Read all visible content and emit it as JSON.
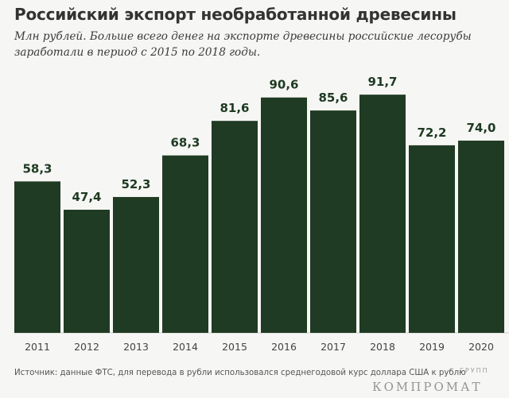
{
  "chart_data": {
    "type": "bar",
    "title": "Российский экспорт необработанной древесины",
    "subtitle": "Млн рублей. Больше всего денег на экспорте древесины российские лесорубы заработали в период с 2015 по 2018 годы.",
    "categories": [
      "2011",
      "2012",
      "2013",
      "2014",
      "2015",
      "2016",
      "2017",
      "2018",
      "2019",
      "2020"
    ],
    "values": [
      58.3,
      47.4,
      52.3,
      68.3,
      81.6,
      90.6,
      85.6,
      91.7,
      72.2,
      74.0
    ],
    "value_labels": [
      "58,3",
      "47,4",
      "52,3",
      "68,3",
      "81,6",
      "90,6",
      "85,6",
      "91,7",
      "72,2",
      "74,0"
    ],
    "ylim": [
      0,
      100
    ],
    "grid": false,
    "xlabel": "",
    "ylabel": "",
    "colors": {
      "bar": "#203b23",
      "label": "#1e3a22",
      "tick": "#444444",
      "axis": "#cfcfcf"
    }
  },
  "source": "Источник: данные ФТС, для перевода в рубли использовался среднегодовой курс доллара США к рублю",
  "watermark": "КОМПРОМАТ",
  "watermark_small": "ГРУПП"
}
